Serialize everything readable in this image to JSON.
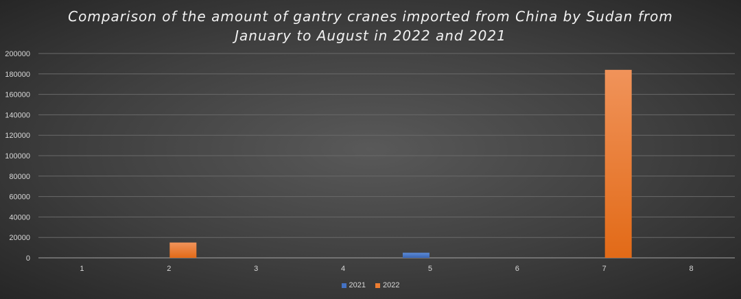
{
  "chart_data": {
    "type": "bar",
    "title_line1": "Comparison of the amount of gantry cranes imported from China by Sudan from",
    "title_line2": "January to August in 2022 and 2021",
    "categories": [
      "1",
      "2",
      "3",
      "4",
      "5",
      "6",
      "7",
      "8"
    ],
    "series": [
      {
        "name": "2021",
        "color": "#4472c4",
        "values": [
          0,
          0,
          0,
          0,
          5000,
          0,
          0,
          0
        ]
      },
      {
        "name": "2022",
        "color": "#ed7d31",
        "values": [
          0,
          15000,
          0,
          0,
          0,
          0,
          184000,
          0
        ]
      }
    ],
    "y_ticks": [
      "0",
      "20000",
      "40000",
      "60000",
      "80000",
      "100000",
      "120000",
      "140000",
      "160000",
      "180000",
      "200000"
    ],
    "ylim": [
      0,
      200000
    ],
    "xlabel": "",
    "ylabel": "",
    "grid": true,
    "legend_position": "bottom"
  }
}
